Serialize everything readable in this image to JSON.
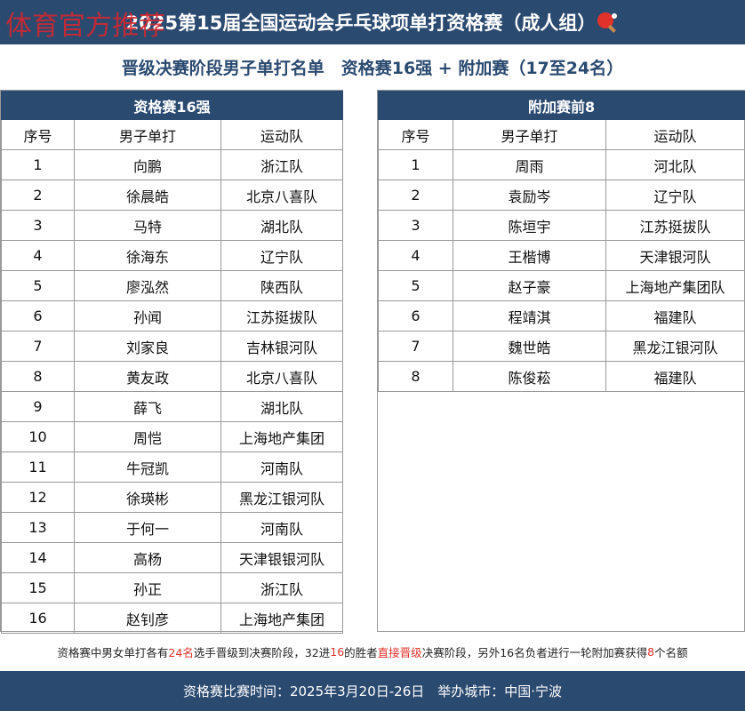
{
  "watermark": "体育官方推荐",
  "header": {
    "title": "2025第15届全国运动会乒乓球项单打资格赛（成人组）",
    "subtitle": "晋级决赛阶段男子单打名单　资格赛16强 + 附加赛（17至24名）"
  },
  "tables": [
    {
      "title": "资格赛16强",
      "columns": [
        "序号",
        "男子单打",
        "运动队"
      ],
      "rows": [
        [
          1,
          "向鹏",
          "浙江队"
        ],
        [
          2,
          "徐晨皓",
          "北京八喜队"
        ],
        [
          3,
          "马特",
          "湖北队"
        ],
        [
          4,
          "徐海东",
          "辽宁队"
        ],
        [
          5,
          "廖泓然",
          "陕西队"
        ],
        [
          6,
          "孙闻",
          "江苏挺拔队"
        ],
        [
          7,
          "刘家良",
          "吉林银河队"
        ],
        [
          8,
          "黄友政",
          "北京八喜队"
        ],
        [
          9,
          "薛飞",
          "湖北队"
        ],
        [
          10,
          "周恺",
          "上海地产集团"
        ],
        [
          11,
          "牛冠凯",
          "河南队"
        ],
        [
          12,
          "徐瑛彬",
          "黑龙江银河队"
        ],
        [
          13,
          "于何一",
          "河南队"
        ],
        [
          14,
          "高杨",
          "天津银银河队"
        ],
        [
          15,
          "孙正",
          "浙江队"
        ],
        [
          16,
          "赵钊彦",
          "上海地产集团"
        ]
      ]
    },
    {
      "title": "附加赛前8",
      "columns": [
        "序号",
        "男子单打",
        "运动队"
      ],
      "rows": [
        [
          1,
          "周雨",
          "河北队"
        ],
        [
          2,
          "袁励岑",
          "辽宁队"
        ],
        [
          3,
          "陈垣宇",
          "江苏挺拔队"
        ],
        [
          4,
          "王楷博",
          "天津银河队"
        ],
        [
          5,
          "赵子豪",
          "上海地产集团队"
        ],
        [
          6,
          "程靖淇",
          "福建队"
        ],
        [
          7,
          "魏世皓",
          "黑龙江银河队"
        ],
        [
          8,
          "陈俊菘",
          "福建队"
        ]
      ]
    }
  ],
  "note": [
    {
      "text": "资格赛中男女单打各有",
      "color": "#222222"
    },
    {
      "text": "24名",
      "color": "#e0312b"
    },
    {
      "text": "选手晋级到决赛阶段，32进",
      "color": "#222222"
    },
    {
      "text": "16",
      "color": "#e0312b"
    },
    {
      "text": "的胜者",
      "color": "#222222"
    },
    {
      "text": "直接晋级",
      "color": "#e0312b"
    },
    {
      "text": "决赛阶段，另外16名负者进行一轮附加赛获得",
      "color": "#222222"
    },
    {
      "text": "8",
      "color": "#e0312b"
    },
    {
      "text": "个名额",
      "color": "#222222"
    }
  ],
  "footer": "资格赛比赛时间：2025年3月20日-26日　举办城市：中国·宁波"
}
